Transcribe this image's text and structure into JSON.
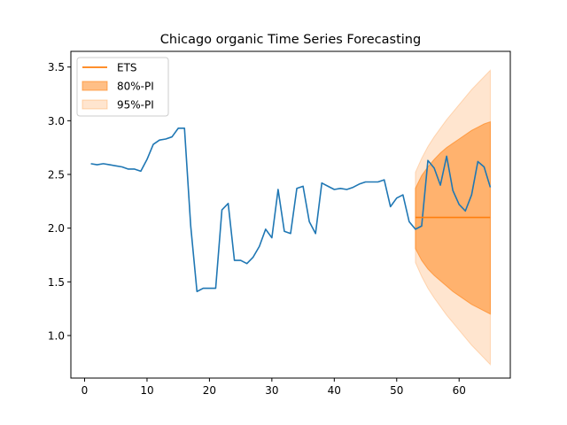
{
  "chart_data": {
    "type": "line",
    "title": "Chicago organic Time Series Forecasting",
    "xlabel": "",
    "ylabel": "",
    "xlim": [
      -2.2,
      68.2
    ],
    "ylim": [
      0.604,
      3.646
    ],
    "xticks": [
      0,
      10,
      20,
      30,
      40,
      50,
      60
    ],
    "xtick_labels": [
      "0",
      "10",
      "20",
      "30",
      "40",
      "50",
      "60"
    ],
    "yticks": [
      1.0,
      1.5,
      2.0,
      2.5,
      3.0,
      3.5
    ],
    "ytick_labels": [
      "1.0",
      "1.5",
      "2.0",
      "2.5",
      "3.0",
      "3.5"
    ],
    "grid": false,
    "legend_position": "upper-left",
    "legend": [
      {
        "label": "ETS",
        "kind": "line",
        "color": "#ff7f0e"
      },
      {
        "label": "80%-PI",
        "kind": "patch",
        "color": "#ff7f0e",
        "alpha": 0.5
      },
      {
        "label": "95%-PI",
        "kind": "patch",
        "color": "#ff7f0e",
        "alpha": 0.2
      }
    ],
    "colors": {
      "actual": "#1f77b4",
      "forecast": "#ff7f0e"
    },
    "series": [
      {
        "kind": "actual",
        "x": [
          1,
          2,
          3,
          4,
          5,
          6,
          7,
          8,
          9,
          10,
          11,
          12,
          13,
          14,
          15,
          16,
          17,
          18,
          19,
          20,
          21,
          22,
          23,
          24,
          25,
          26,
          27,
          28,
          29,
          30,
          31,
          32,
          33,
          34,
          35,
          36,
          37,
          38,
          39,
          40,
          41,
          42,
          43,
          44,
          45,
          46,
          47,
          48,
          49,
          50,
          51,
          52,
          53,
          54,
          55,
          56,
          57,
          58,
          59,
          60,
          61,
          62,
          63,
          64,
          65
        ],
        "y": [
          2.6,
          2.59,
          2.6,
          2.59,
          2.58,
          2.57,
          2.55,
          2.55,
          2.53,
          2.64,
          2.78,
          2.82,
          2.83,
          2.85,
          2.93,
          2.93,
          2.02,
          1.41,
          1.44,
          1.44,
          1.44,
          2.17,
          2.23,
          1.7,
          1.7,
          1.67,
          1.73,
          1.83,
          1.99,
          1.91,
          2.36,
          1.97,
          1.95,
          2.37,
          2.39,
          2.06,
          1.95,
          2.42,
          2.39,
          2.36,
          2.37,
          2.36,
          2.38,
          2.41,
          2.43,
          2.43,
          2.43,
          2.45,
          2.2,
          2.28,
          2.31,
          2.06,
          1.99,
          2.02,
          2.63,
          2.56,
          2.4,
          2.67,
          2.35,
          2.22,
          2.16,
          2.31,
          2.62,
          2.57,
          2.38
        ]
      },
      {
        "name": "ETS",
        "kind": "forecast",
        "x": [
          53,
          65
        ],
        "y": [
          2.1,
          2.1
        ]
      }
    ],
    "intervals": [
      {
        "name": "95%-PI",
        "x": [
          53,
          54,
          55,
          56,
          57,
          58,
          59,
          60,
          61,
          62,
          63,
          64,
          65
        ],
        "lower": [
          1.68,
          1.55,
          1.44,
          1.35,
          1.27,
          1.19,
          1.12,
          1.05,
          0.98,
          0.91,
          0.85,
          0.79,
          0.73
        ],
        "upper": [
          2.52,
          2.65,
          2.76,
          2.85,
          2.93,
          3.01,
          3.08,
          3.15,
          3.22,
          3.29,
          3.35,
          3.41,
          3.47
        ]
      },
      {
        "name": "80%-PI",
        "x": [
          53,
          54,
          55,
          56,
          57,
          58,
          59,
          60,
          61,
          62,
          63,
          64,
          65
        ],
        "lower": [
          1.81,
          1.7,
          1.62,
          1.56,
          1.51,
          1.46,
          1.41,
          1.37,
          1.33,
          1.29,
          1.26,
          1.23,
          1.2
        ],
        "upper": [
          2.37,
          2.49,
          2.57,
          2.64,
          2.7,
          2.75,
          2.79,
          2.83,
          2.87,
          2.91,
          2.94,
          2.97,
          2.99
        ]
      }
    ]
  }
}
